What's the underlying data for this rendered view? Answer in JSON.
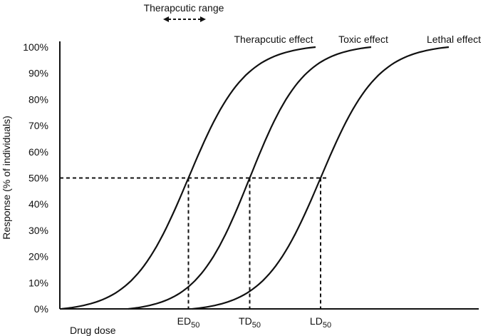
{
  "chart_data": {
    "type": "line",
    "title": "",
    "ylabel": "Response (% of individuals)",
    "xlabel": "Drug dose",
    "ylim": [
      0,
      100
    ],
    "y_ticks": [
      "0%",
      "10%",
      "20%",
      "30%",
      "40%",
      "50%",
      "60%",
      "70%",
      "80%",
      "90%",
      "100%"
    ],
    "series": [
      {
        "name": "Therapcutic effect",
        "midpoint_label": "ED",
        "midpoint_sub": "50"
      },
      {
        "name": "Toxic effect",
        "midpoint_label": "TD",
        "midpoint_sub": "50"
      },
      {
        "name": "Lethal effect",
        "midpoint_label": "LD",
        "midpoint_sub": "50"
      }
    ],
    "reference_line_y": 50,
    "range_annotation": "Therapcutic range",
    "grid": false,
    "legend": "none"
  }
}
